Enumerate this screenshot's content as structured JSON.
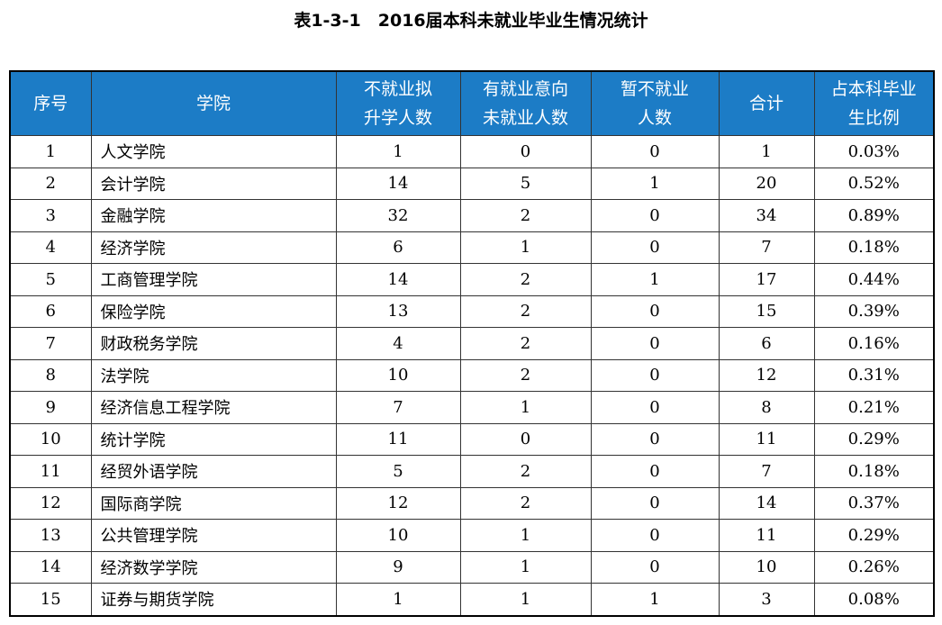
{
  "title": "表1-3-1　2016届本科未就业毕业生情况统计",
  "table": {
    "headers": [
      "序号",
      "学院",
      "不就业拟\n升学人数",
      "有就业意向\n未就业人数",
      "暂不就业\n人数",
      "合计",
      "占本科毕业\n生比例"
    ],
    "rows": [
      [
        "1",
        "人文学院",
        "1",
        "0",
        "0",
        "1",
        "0.03%"
      ],
      [
        "2",
        "会计学院",
        "14",
        "5",
        "1",
        "20",
        "0.52%"
      ],
      [
        "3",
        "金融学院",
        "32",
        "2",
        "0",
        "34",
        "0.89%"
      ],
      [
        "4",
        "经济学院",
        "6",
        "1",
        "0",
        "7",
        "0.18%"
      ],
      [
        "5",
        "工商管理学院",
        "14",
        "2",
        "1",
        "17",
        "0.44%"
      ],
      [
        "6",
        "保险学院",
        "13",
        "2",
        "0",
        "15",
        "0.39%"
      ],
      [
        "7",
        "财政税务学院",
        "4",
        "2",
        "0",
        "6",
        "0.16%"
      ],
      [
        "8",
        "法学院",
        "10",
        "2",
        "0",
        "12",
        "0.31%"
      ],
      [
        "9",
        "经济信息工程学院",
        "7",
        "1",
        "0",
        "8",
        "0.21%"
      ],
      [
        "10",
        "统计学院",
        "11",
        "0",
        "0",
        "11",
        "0.29%"
      ],
      [
        "11",
        "经贸外语学院",
        "5",
        "2",
        "0",
        "7",
        "0.18%"
      ],
      [
        "12",
        "国际商学院",
        "12",
        "2",
        "0",
        "14",
        "0.37%"
      ],
      [
        "13",
        "公共管理学院",
        "10",
        "1",
        "0",
        "11",
        "0.29%"
      ],
      [
        "14",
        "经济数学学院",
        "9",
        "1",
        "0",
        "10",
        "0.26%"
      ],
      [
        "15",
        "证券与期货学院",
        "1",
        "1",
        "1",
        "3",
        "0.08%"
      ]
    ]
  }
}
